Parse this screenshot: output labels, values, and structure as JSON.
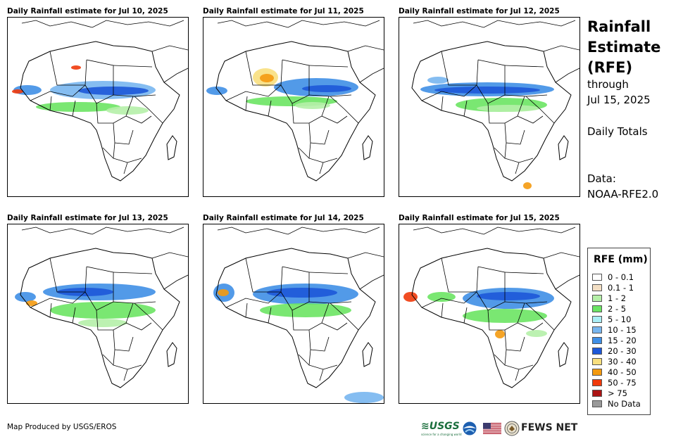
{
  "panels": [
    {
      "title": "Daily Rainfall estimate for Jul 10, 2025"
    },
    {
      "title": "Daily Rainfall estimate for Jul 11, 2025"
    },
    {
      "title": "Daily Rainfall estimate for Jul 12, 2025"
    },
    {
      "title": "Daily Rainfall estimate for Jul 13, 2025"
    },
    {
      "title": "Daily Rainfall estimate for Jul 14, 2025"
    },
    {
      "title": "Daily Rainfall estimate for Jul 15, 2025"
    }
  ],
  "sidebar": {
    "title_lines": [
      "Rainfall",
      "Estimate",
      "(RFE)"
    ],
    "through_label": "through",
    "through_date": "Jul 15, 2025",
    "period": "Daily Totals",
    "data_label": "Data:",
    "data_source": "NOAA-RFE2.0"
  },
  "legend": {
    "title": "RFE (mm)",
    "items": [
      {
        "label": "0 - 0.1",
        "color": "#ffffff"
      },
      {
        "label": "0.1 - 1",
        "color": "#f3dfc4"
      },
      {
        "label": "1 - 2",
        "color": "#b5f0a8"
      },
      {
        "label": "2 - 5",
        "color": "#6be463"
      },
      {
        "label": "5 - 10",
        "color": "#aaeef5"
      },
      {
        "label": "10 - 15",
        "color": "#78b6ef"
      },
      {
        "label": "15 - 20",
        "color": "#3f8fe6"
      },
      {
        "label": "20 - 30",
        "color": "#1d58d8"
      },
      {
        "label": "30 - 40",
        "color": "#f8df7e"
      },
      {
        "label": "40 - 50",
        "color": "#f49a0f"
      },
      {
        "label": "50 - 75",
        "color": "#f03a0b"
      },
      {
        "label": "> 75",
        "color": "#ad1414"
      },
      {
        "label": "No Data",
        "color": "#999999"
      }
    ]
  },
  "footer": {
    "credit": "Map Produced by USGS/EROS",
    "usgs": "USGS",
    "usgs_tagline": "science for a changing world",
    "fews": "FEWS NET"
  }
}
